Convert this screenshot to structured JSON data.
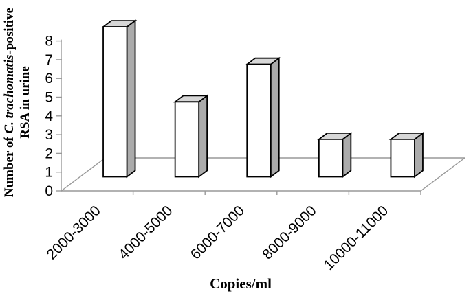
{
  "figure": {
    "background": "#ffffff",
    "x_axis_title": "Copies/ml",
    "y_axis_title_line1_prefix": "Number of ",
    "y_axis_title_italic": "C. trachomatis",
    "y_axis_title_line1_suffix": "-positive",
    "y_axis_title_line2": "RSA in urine"
  },
  "chart_data": {
    "type": "bar",
    "style": "3d-column",
    "title": "",
    "xlabel": "Copies/ml",
    "ylabel": "Number of C. trachomatis-positive RSA in urine",
    "categories": [
      "2000-3000",
      "4000-5000",
      "6000-7000",
      "8000-9000",
      "10000-11000"
    ],
    "values": [
      8,
      4,
      6,
      2,
      2
    ],
    "yticks": [
      0,
      1,
      2,
      3,
      4,
      5,
      6,
      7,
      8
    ],
    "ylim": [
      0,
      8
    ],
    "grid": false,
    "legend_position": "none",
    "colors": {
      "bar_front": "#ffffff",
      "bar_top": "#d7d7d7",
      "bar_side": "#ababab",
      "bar_outline": "#000000",
      "axis_line": "#999999",
      "text": "#000000"
    }
  }
}
